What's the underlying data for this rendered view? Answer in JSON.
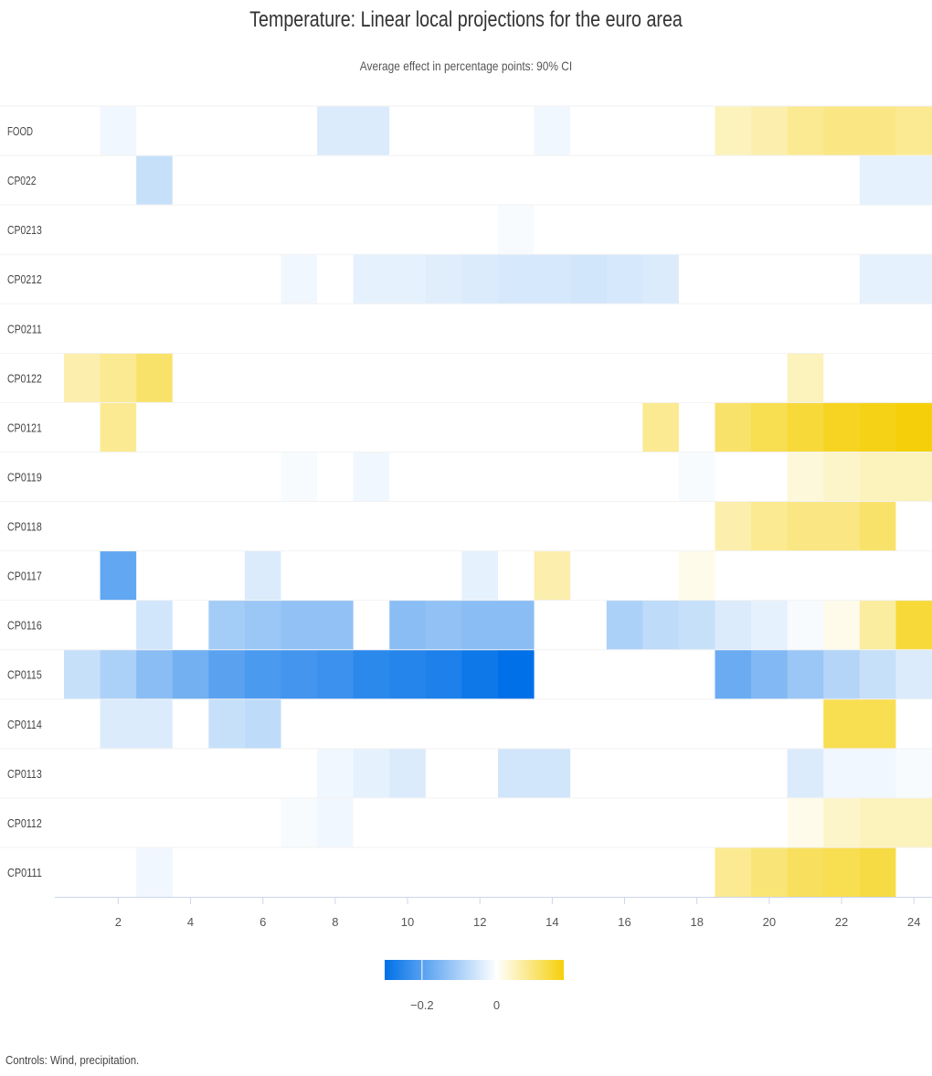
{
  "chart_data": {
    "type": "heatmap",
    "title": "Temperature: Linear local projections for the euro area",
    "subtitle": "Average effect in percentage points: 90% CI",
    "x_ticks": [
      2,
      4,
      6,
      8,
      10,
      12,
      14,
      16,
      18,
      20,
      22,
      24
    ],
    "x_range": [
      1,
      24
    ],
    "rows": [
      "FOOD",
      "CP022",
      "CP0213",
      "CP0212",
      "CP0211",
      "CP0122",
      "CP0121",
      "CP0119",
      "CP0118",
      "CP0117",
      "CP0116",
      "CP0115",
      "CP0114",
      "CP0113",
      "CP0112",
      "CP0111"
    ],
    "values": {
      "FOOD": [
        0,
        -0.01,
        0,
        0,
        0,
        0,
        0,
        -0.03,
        -0.03,
        0,
        0,
        0,
        0,
        -0.01,
        0,
        0,
        0,
        0,
        0.04,
        0.05,
        0.07,
        0.08,
        0.08,
        0.07
      ],
      "CP022": [
        0,
        0,
        -0.05,
        0,
        0,
        0,
        0,
        0,
        0,
        0,
        0,
        0,
        0,
        0,
        0,
        0,
        0,
        0,
        0,
        0,
        0,
        0,
        -0.02,
        -0.02
      ],
      "CP0213": [
        0,
        0,
        0,
        0,
        0,
        0,
        0,
        0,
        0,
        0,
        0,
        0,
        -0.005,
        0,
        0,
        0,
        0,
        0,
        0,
        0,
        0,
        0,
        0,
        0
      ],
      "CP0212": [
        0,
        0,
        0,
        0,
        0,
        0,
        -0.01,
        0,
        -0.02,
        -0.02,
        -0.025,
        -0.03,
        -0.035,
        -0.035,
        -0.04,
        -0.035,
        -0.03,
        0,
        0,
        0,
        0,
        0,
        -0.02,
        -0.02
      ],
      "CP0211": [
        0,
        0,
        0,
        0,
        0,
        0,
        0,
        0,
        0,
        0,
        0,
        0,
        0,
        0,
        0,
        0,
        0,
        0,
        0,
        0,
        0,
        0,
        0,
        0
      ],
      "CP0122": [
        0.05,
        0.07,
        0.1,
        0,
        0,
        0,
        0,
        0,
        0,
        0,
        0,
        0,
        0,
        0,
        0,
        0,
        0,
        0,
        0,
        0,
        0.04,
        0,
        0,
        0
      ],
      "CP0121": [
        0,
        0.07,
        0,
        0,
        0,
        0,
        0,
        0,
        0,
        0,
        0,
        0,
        0,
        0,
        0,
        0,
        0.07,
        0,
        0.1,
        0.12,
        0.14,
        0.16,
        0.17,
        0.18
      ],
      "CP0119": [
        0,
        0,
        0,
        0,
        0,
        0,
        -0.005,
        0,
        -0.01,
        0,
        0,
        0,
        0,
        0,
        0,
        0,
        0,
        -0.005,
        0,
        0,
        0.02,
        0.03,
        0.04,
        0.04
      ],
      "CP0118": [
        0,
        0,
        0,
        0,
        0,
        0,
        0,
        0,
        0,
        0,
        0,
        0,
        0,
        0,
        0,
        0,
        0,
        0,
        0.05,
        0.07,
        0.08,
        0.08,
        0.1,
        0
      ],
      "CP0117": [
        0,
        -0.17,
        0,
        0,
        0,
        -0.03,
        0,
        0,
        0,
        0,
        0,
        -0.02,
        0,
        0.05,
        0,
        0,
        0,
        0.01,
        0,
        0,
        0,
        0,
        0,
        0
      ],
      "CP0116": [
        0,
        0,
        -0.04,
        0,
        -0.09,
        -0.1,
        -0.11,
        -0.11,
        0,
        -0.12,
        -0.11,
        -0.12,
        -0.12,
        0,
        0,
        -0.08,
        -0.06,
        -0.05,
        -0.03,
        -0.02,
        -0.005,
        0.01,
        0.06,
        0.14
      ],
      "CP0115": [
        -0.05,
        -0.08,
        -0.12,
        -0.15,
        -0.18,
        -0.2,
        -0.21,
        -0.22,
        -0.24,
        -0.25,
        -0.26,
        -0.28,
        -0.3,
        0,
        0,
        0,
        0,
        0,
        -0.16,
        -0.13,
        -0.1,
        -0.07,
        -0.05,
        -0.03
      ],
      "CP0114": [
        0,
        -0.03,
        -0.03,
        0,
        -0.05,
        -0.06,
        0,
        0,
        0,
        0,
        0,
        0,
        0,
        0,
        0,
        0,
        0,
        0,
        0,
        0,
        0,
        0.12,
        0.12,
        0
      ],
      "CP0113": [
        0,
        0,
        0,
        0,
        0,
        0,
        0,
        -0.01,
        -0.02,
        -0.03,
        0,
        0,
        -0.04,
        -0.04,
        0,
        0,
        0,
        0,
        0,
        0,
        -0.03,
        -0.01,
        -0.01,
        -0.005
      ],
      "CP0112": [
        0,
        0,
        0,
        0,
        0,
        0,
        -0.005,
        -0.01,
        0,
        0,
        0,
        0,
        0,
        0,
        0,
        0,
        0,
        0,
        0,
        0,
        0.01,
        0.03,
        0.04,
        0.04
      ],
      "CP0111": [
        0,
        0,
        -0.01,
        0,
        0,
        0,
        0,
        0,
        0,
        0,
        0,
        0,
        0,
        0,
        0,
        0,
        0,
        0,
        0.07,
        0.09,
        0.11,
        0.12,
        0.13,
        0
      ]
    },
    "color_scale": {
      "min": -0.3,
      "max": 0.18,
      "min_color": "#0070e8",
      "zero_color": "#ffffff",
      "max_color": "#f5d00a",
      "legend_ticks": [
        -0.2,
        0
      ]
    },
    "legend_tick_labels": [
      "−0.2",
      "0"
    ],
    "grid": false,
    "legend_position": "bottom-center"
  },
  "caption": "Controls: Wind, precipitation."
}
